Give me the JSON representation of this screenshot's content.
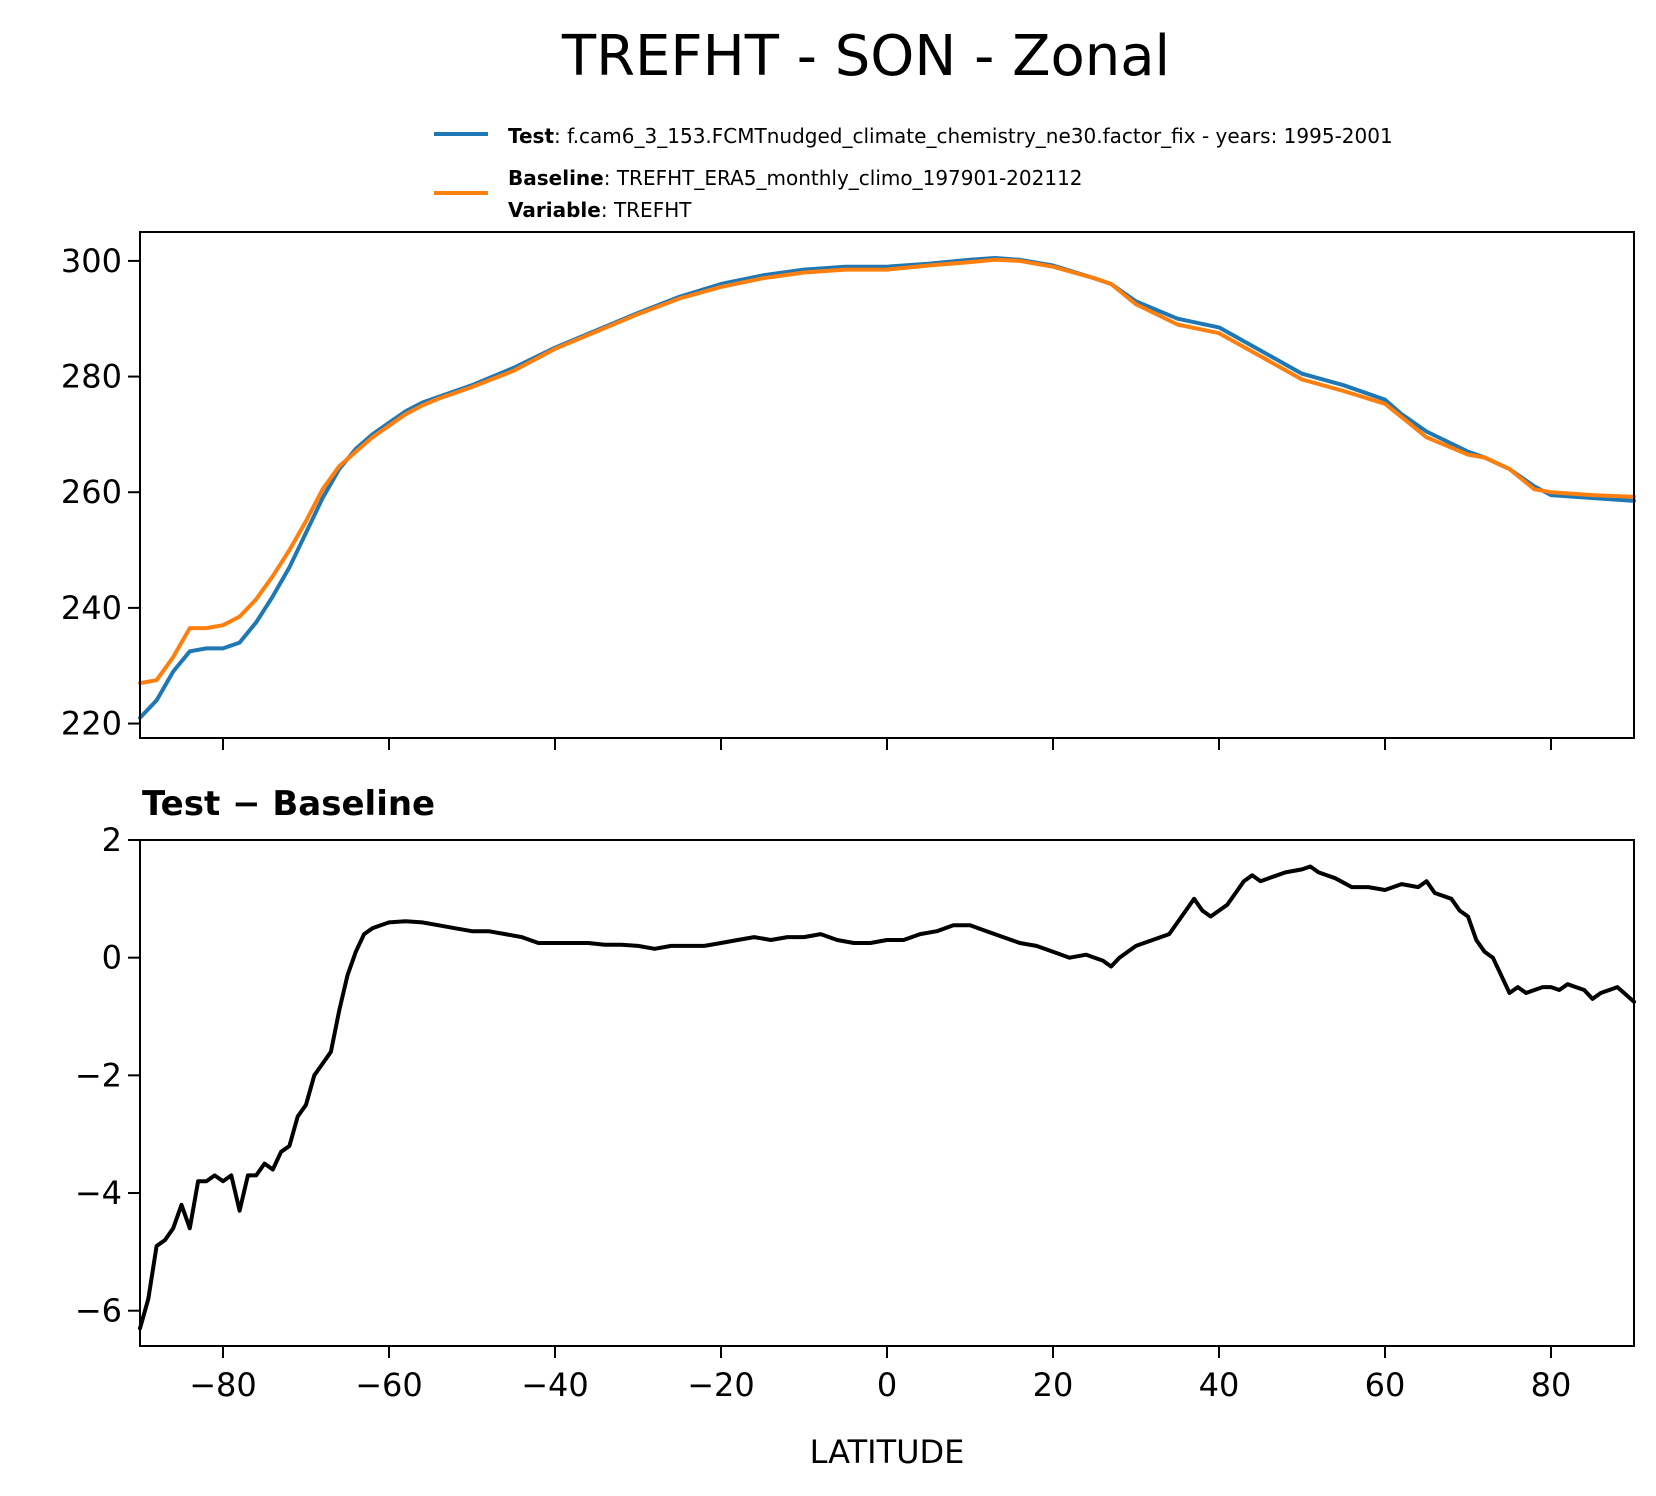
{
  "figure_title": "TREFHT - SON - Zonal",
  "legend": {
    "test_key": "Test",
    "test_text": ": f.cam6_3_153.FCMTnudged_climate_chemistry_ne30.factor_fix - years: 1995-2001",
    "baseline_key": "Baseline",
    "baseline_text": ": TREFHT_ERA5_monthly_climo_197901-202112",
    "variable_key": "Variable",
    "variable_text": ": TREFHT"
  },
  "colors": {
    "test": "#1f77b4",
    "baseline": "#ff7f0e",
    "diff": "#000000"
  },
  "chart_data": [
    {
      "type": "line",
      "title": "",
      "xlabel": "",
      "ylabel": "",
      "xlim": [
        -90,
        90
      ],
      "ylim": [
        217.5,
        305
      ],
      "yticks": [
        220,
        240,
        260,
        280,
        300
      ],
      "xticks": [
        -80,
        -60,
        -40,
        -20,
        0,
        20,
        40,
        60,
        80
      ],
      "x_ticklabels_shown": false,
      "legend": "top, above axes",
      "grid": false,
      "series": [
        {
          "name": "Test",
          "color": "#1f77b4",
          "x": [
            -90,
            -88,
            -86,
            -84,
            -82,
            -80,
            -78,
            -76,
            -74,
            -72,
            -70,
            -68,
            -66,
            -64,
            -62,
            -60,
            -58,
            -56,
            -54,
            -52,
            -50,
            -45,
            -40,
            -35,
            -30,
            -25,
            -20,
            -15,
            -10,
            -5,
            0,
            5,
            10,
            13,
            16,
            20,
            25,
            27,
            30,
            35,
            40,
            45,
            50,
            55,
            60,
            62,
            65,
            70,
            72,
            75,
            78,
            80,
            85,
            90
          ],
          "y": [
            221,
            224,
            229,
            232.5,
            233,
            233,
            234,
            237.5,
            242,
            247,
            253,
            259,
            264,
            267.5,
            270,
            272,
            274,
            275.5,
            276.5,
            277.5,
            278.5,
            281.5,
            285,
            288,
            291,
            293.8,
            296,
            297.5,
            298.5,
            299,
            299,
            299.5,
            300.2,
            300.5,
            300.2,
            299.2,
            297,
            296,
            293,
            290,
            288.5,
            284.5,
            280.5,
            278.5,
            276,
            273.5,
            270.5,
            267,
            266,
            264,
            261,
            259.5,
            259,
            258.5
          ]
        },
        {
          "name": "Baseline",
          "color": "#ff7f0e",
          "x": [
            -90,
            -88,
            -86,
            -84,
            -82,
            -80,
            -78,
            -76,
            -74,
            -72,
            -70,
            -68,
            -66,
            -64,
            -62,
            -60,
            -58,
            -56,
            -54,
            -52,
            -50,
            -45,
            -40,
            -35,
            -30,
            -25,
            -20,
            -15,
            -10,
            -5,
            0,
            5,
            10,
            13,
            16,
            20,
            25,
            27,
            30,
            35,
            40,
            45,
            50,
            55,
            60,
            62,
            65,
            70,
            72,
            75,
            78,
            80,
            85,
            90
          ],
          "y": [
            227,
            227.5,
            231.5,
            236.5,
            236.5,
            237,
            238.5,
            241.5,
            245.5,
            250,
            255,
            260.5,
            264.5,
            267,
            269.5,
            271.5,
            273.5,
            275,
            276.2,
            277.2,
            278.2,
            281,
            284.8,
            287.8,
            290.8,
            293.5,
            295.5,
            297,
            298,
            298.5,
            298.5,
            299.2,
            299.8,
            300.2,
            300,
            299,
            297,
            296,
            292.5,
            289,
            287.5,
            283.5,
            279.5,
            277.5,
            275.3,
            273,
            269.5,
            266.5,
            266,
            264,
            260.5,
            260,
            259.5,
            259.2
          ]
        }
      ]
    },
    {
      "type": "line",
      "title": "Test − Baseline",
      "xlabel": "LATITUDE",
      "ylabel": "",
      "xlim": [
        -90,
        90
      ],
      "ylim": [
        -6.6,
        2
      ],
      "yticks": [
        -6,
        -4,
        -2,
        0,
        2
      ],
      "xticks": [
        -80,
        -60,
        -40,
        -20,
        0,
        20,
        40,
        60,
        80
      ],
      "x_ticklabels": [
        "−80",
        "−60",
        "−40",
        "−20",
        "0",
        "20",
        "40",
        "60",
        "80"
      ],
      "y_ticklabels": [
        "−6",
        "−4",
        "−2",
        "0",
        "2"
      ],
      "grid": false,
      "series": [
        {
          "color": "#000000",
          "x": [
            -90,
            -89,
            -88,
            -87,
            -86,
            -85,
            -84,
            -83,
            -82,
            -81,
            -80,
            -79,
            -78,
            -77,
            -76,
            -75,
            -74,
            -73,
            -72,
            -71,
            -70,
            -69,
            -68,
            -67,
            -66,
            -65,
            -64,
            -63,
            -62,
            -61,
            -60,
            -58,
            -56,
            -54,
            -52,
            -50,
            -48,
            -46,
            -44,
            -42,
            -40,
            -38,
            -36,
            -34,
            -32,
            -30,
            -28,
            -26,
            -24,
            -22,
            -20,
            -18,
            -16,
            -14,
            -12,
            -10,
            -8,
            -6,
            -4,
            -2,
            0,
            2,
            4,
            6,
            8,
            10,
            12,
            14,
            16,
            18,
            20,
            22,
            24,
            26,
            27,
            28,
            30,
            32,
            34,
            35,
            36,
            37,
            38,
            39,
            40,
            41,
            42,
            43,
            44,
            45,
            46,
            47,
            48,
            50,
            51,
            52,
            54,
            56,
            58,
            60,
            62,
            64,
            65,
            66,
            68,
            69,
            70,
            71,
            72,
            73,
            74,
            75,
            76,
            77,
            78,
            79,
            80,
            81,
            82,
            83,
            84,
            85,
            86,
            88,
            90
          ],
          "y": [
            -6.3,
            -5.8,
            -4.9,
            -4.8,
            -4.6,
            -4.2,
            -4.6,
            -3.8,
            -3.8,
            -3.7,
            -3.8,
            -3.7,
            -4.3,
            -3.7,
            -3.7,
            -3.5,
            -3.6,
            -3.3,
            -3.2,
            -2.7,
            -2.5,
            -2.0,
            -1.8,
            -1.6,
            -0.9,
            -0.3,
            0.1,
            0.4,
            0.5,
            0.55,
            0.6,
            0.62,
            0.6,
            0.55,
            0.5,
            0.45,
            0.45,
            0.4,
            0.35,
            0.25,
            0.25,
            0.25,
            0.25,
            0.22,
            0.22,
            0.2,
            0.15,
            0.2,
            0.2,
            0.2,
            0.25,
            0.3,
            0.35,
            0.3,
            0.35,
            0.35,
            0.4,
            0.3,
            0.25,
            0.25,
            0.3,
            0.3,
            0.4,
            0.45,
            0.55,
            0.55,
            0.45,
            0.35,
            0.25,
            0.2,
            0.1,
            0.0,
            0.05,
            -0.05,
            -0.15,
            0.0,
            0.2,
            0.3,
            0.4,
            0.6,
            0.8,
            1.0,
            0.8,
            0.7,
            0.8,
            0.9,
            1.1,
            1.3,
            1.4,
            1.3,
            1.35,
            1.4,
            1.45,
            1.5,
            1.55,
            1.45,
            1.35,
            1.2,
            1.2,
            1.15,
            1.25,
            1.2,
            1.3,
            1.1,
            1.0,
            0.8,
            0.7,
            0.3,
            0.1,
            0.0,
            -0.3,
            -0.6,
            -0.5,
            -0.6,
            -0.55,
            -0.5,
            -0.5,
            -0.55,
            -0.45,
            -0.5,
            -0.55,
            -0.7,
            -0.6,
            -0.5,
            -0.75
          ]
        }
      ]
    }
  ]
}
